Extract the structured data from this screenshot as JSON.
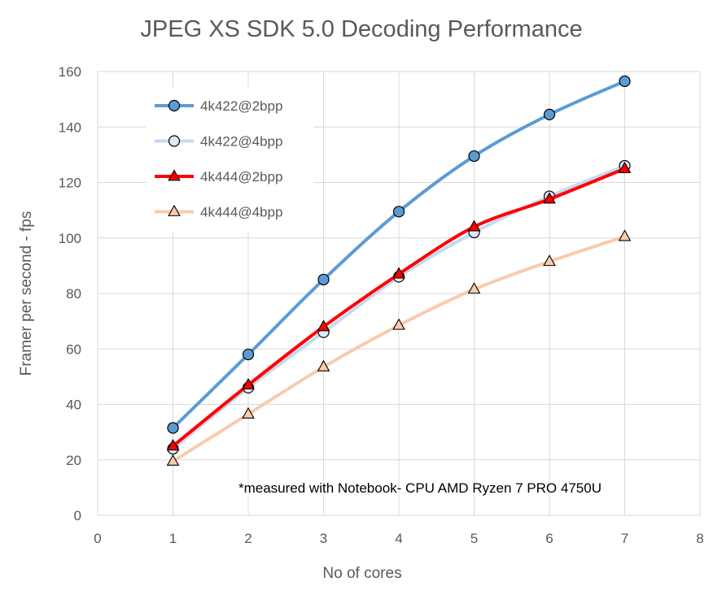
{
  "chart_data": {
    "type": "line",
    "title": "JPEG XS SDK 5.0 Decoding Performance",
    "xlabel": "No of cores",
    "ylabel": "Framer per second - fps",
    "xlim": [
      0,
      8
    ],
    "ylim": [
      0,
      160
    ],
    "xticks": [
      0,
      1,
      2,
      3,
      4,
      5,
      6,
      7,
      8
    ],
    "yticks": [
      0,
      20,
      40,
      60,
      80,
      100,
      120,
      140,
      160
    ],
    "grid": true,
    "legend_position": "top-left",
    "x": [
      1,
      2,
      3,
      4,
      5,
      6,
      7
    ],
    "series": [
      {
        "name": "4k422@2bpp",
        "values": [
          31.5,
          58,
          85,
          109.5,
          129.5,
          144.5,
          156.5
        ],
        "color": "#5b9bd5",
        "marker": "circle",
        "marker_fill": "#5b9bd5"
      },
      {
        "name": "4k422@4bpp",
        "values": [
          24,
          46,
          66,
          86,
          102,
          115,
          126
        ],
        "color": "#c5d9f1",
        "marker": "circle",
        "marker_fill": "#dce9f5"
      },
      {
        "name": "4k444@2bpp",
        "values": [
          25,
          47,
          68,
          87,
          104,
          114,
          125
        ],
        "color": "#ff0000",
        "marker": "triangle",
        "marker_fill": "#ff0000"
      },
      {
        "name": "4k444@4bpp",
        "values": [
          19.5,
          36.5,
          53.5,
          68.5,
          81.5,
          91.5,
          100.5
        ],
        "color": "#f8cbad",
        "marker": "triangle",
        "marker_fill": "#f8cbad"
      }
    ],
    "annotation": "*measured with Notebook- CPU AMD Ryzen 7 PRO 4750U"
  }
}
